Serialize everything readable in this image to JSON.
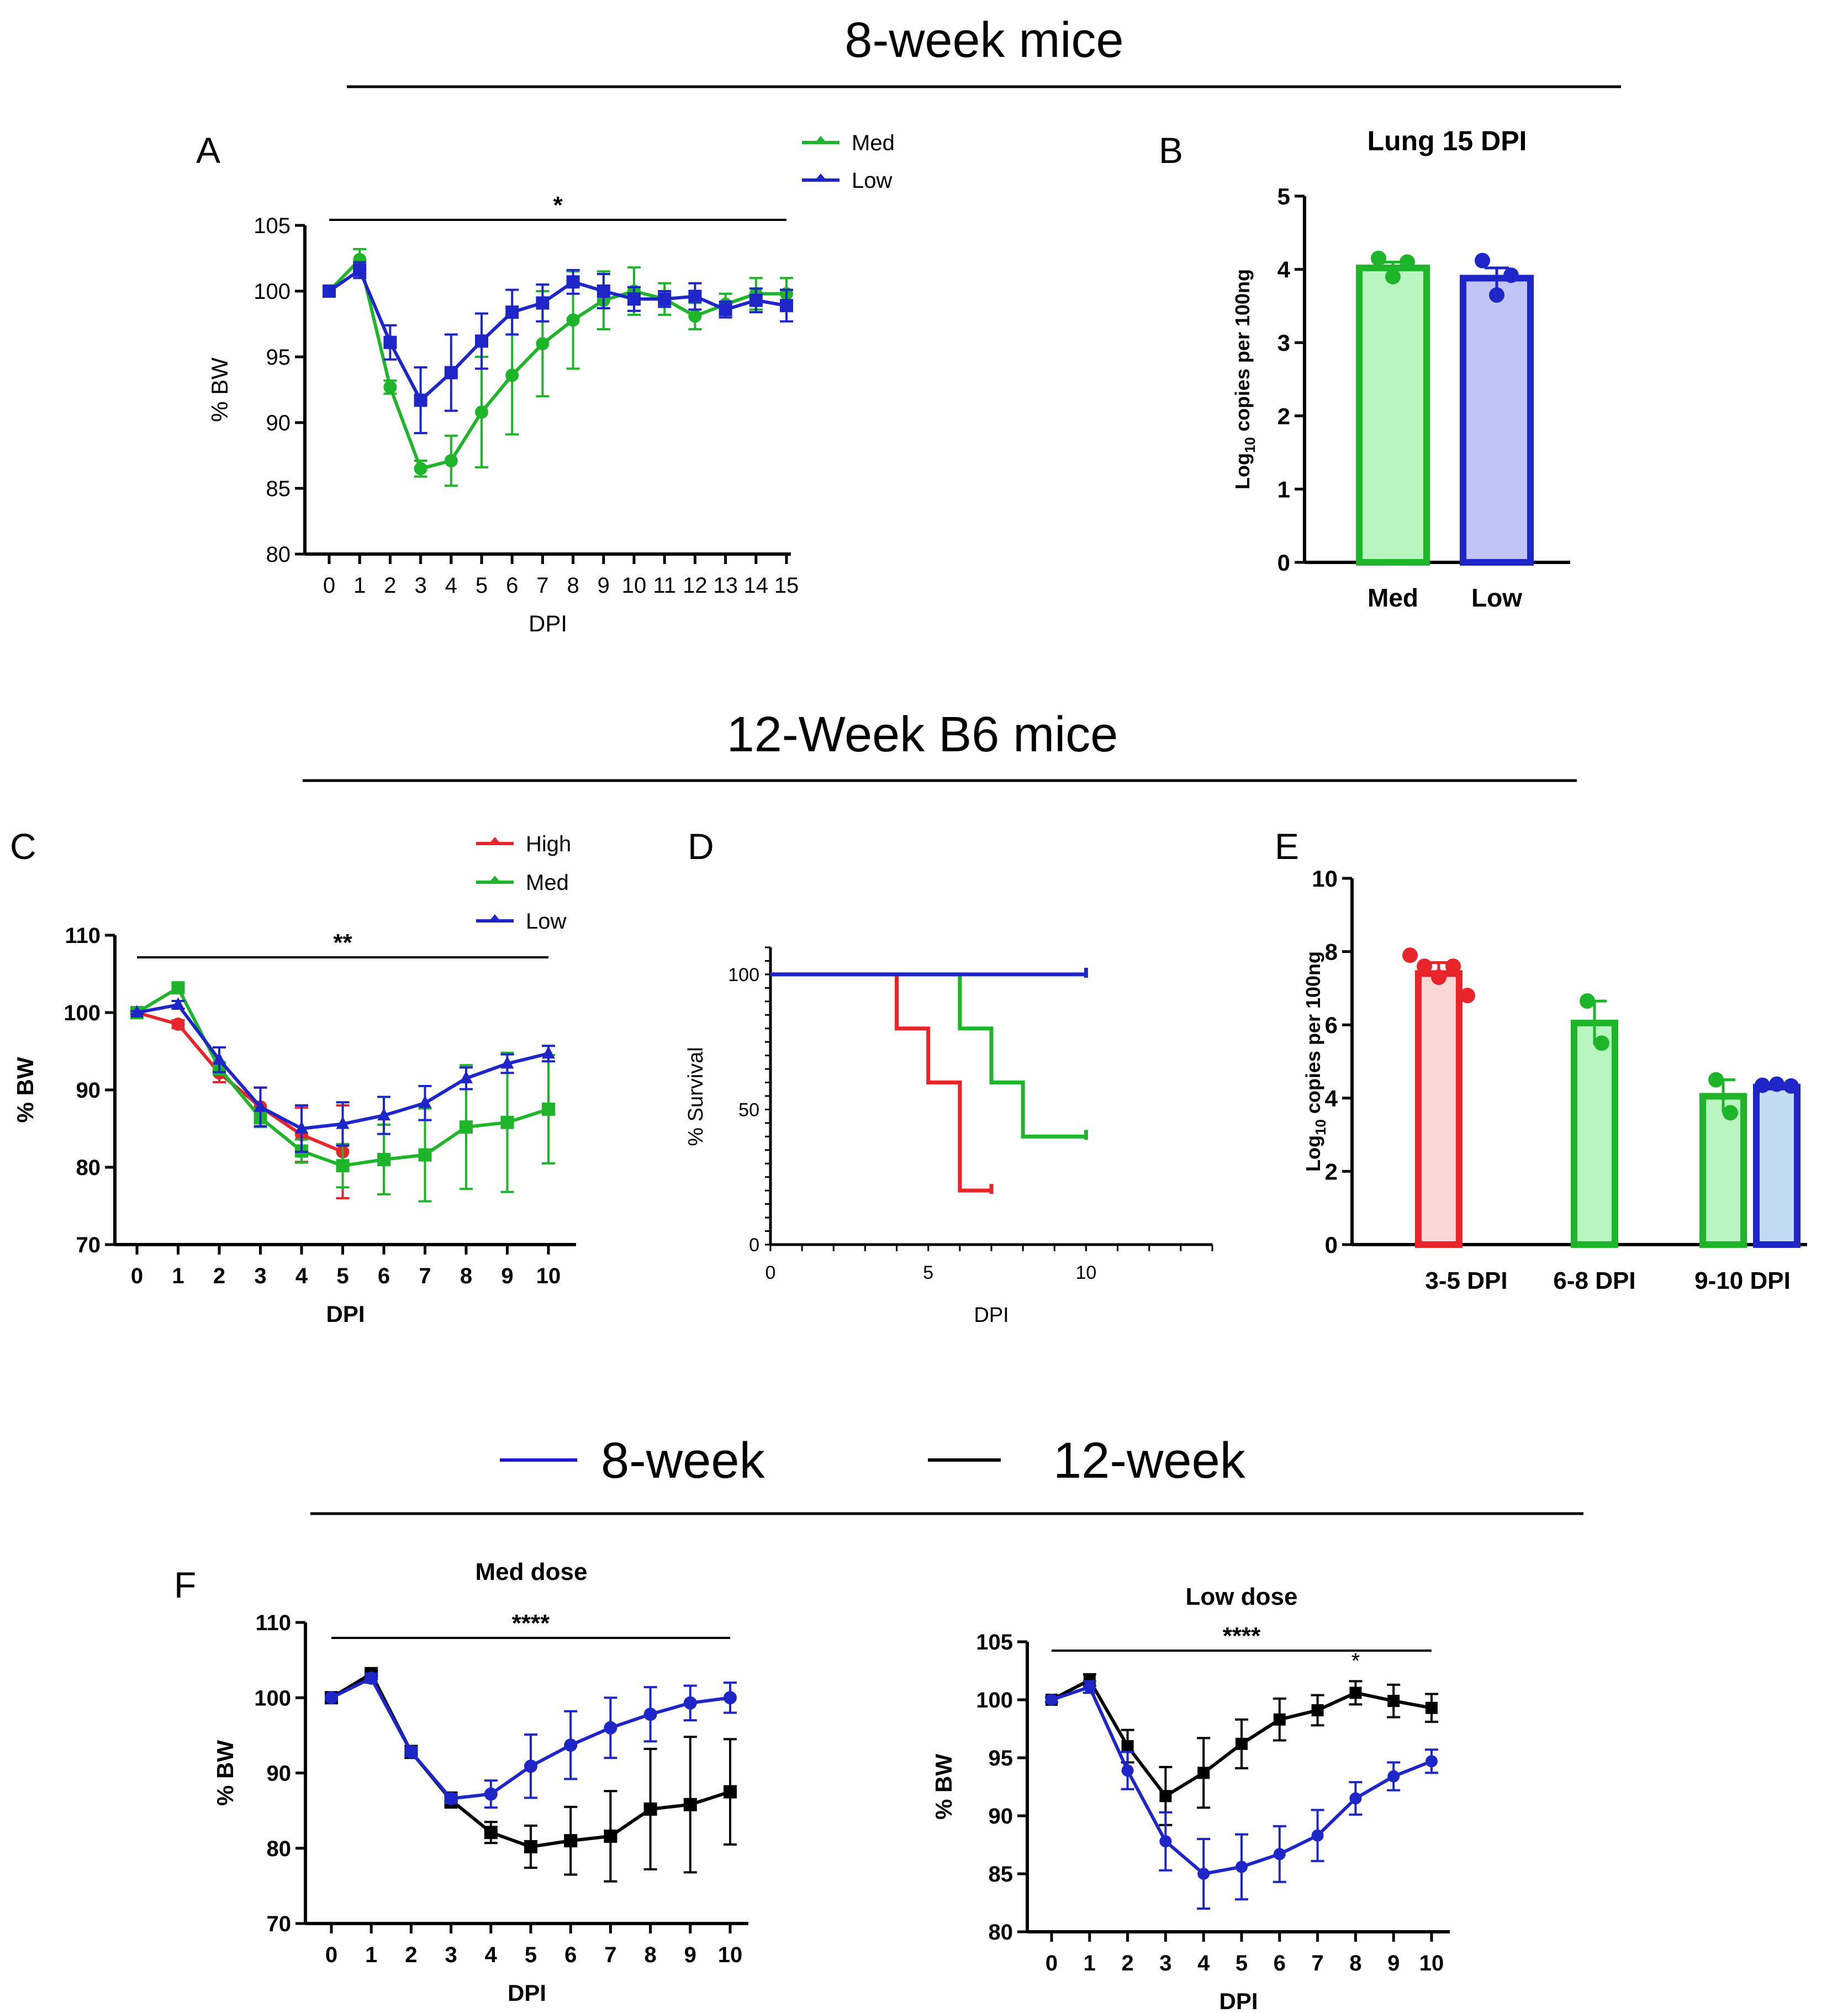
{
  "headers": {
    "top": "8-week mice",
    "middle": "12-Week B6 mice",
    "bottom_legend": [
      {
        "label": "8-week",
        "color": "#1a1ad6"
      },
      {
        "label": "12-week",
        "color": "#000000"
      }
    ]
  },
  "panel_labels": {
    "A": "A",
    "B": "B",
    "C": "C",
    "D": "D",
    "E": "E",
    "F": "F"
  },
  "colors": {
    "high": "#e8252b",
    "med": "#1fb52a",
    "low": "#1f26c7",
    "black": "#000000",
    "med_fill": "#b8f5c0",
    "low_fill": "#c2c4f7",
    "high_fill": "#fbd7d8",
    "low_fill_e": "#c4dbf5"
  },
  "chart_data": [
    {
      "id": "A",
      "type": "line",
      "xlabel": "DPI",
      "ylabel": "% BW",
      "ylim": [
        80,
        105
      ],
      "yticks": [
        "80",
        "85",
        "90",
        "95",
        "100",
        "105"
      ],
      "x": [
        0,
        1,
        2,
        3,
        4,
        5,
        6,
        7,
        8,
        9,
        10,
        11,
        12,
        13,
        14,
        15
      ],
      "x_tick_labels": [
        "0",
        "1",
        "2",
        "3",
        "4",
        "5",
        "6",
        "7",
        "8",
        "9",
        "10",
        "11",
        "12",
        "13",
        "14",
        "15"
      ],
      "significance": "*",
      "legend": [
        "Med",
        "Low"
      ],
      "series": [
        {
          "name": "Med",
          "color": "#1fb52a",
          "marker": "circle",
          "values": [
            100,
            102.4,
            92.7,
            86.5,
            87.1,
            90.8,
            93.6,
            96.0,
            97.8,
            99.3,
            100.0,
            99.4,
            98.1,
            99.0,
            99.8,
            99.8
          ],
          "err": [
            0.3,
            0.8,
            0.5,
            0.6,
            1.9,
            4.2,
            4.5,
            4.0,
            3.7,
            2.2,
            1.8,
            1.2,
            1.0,
            0.8,
            1.2,
            1.2
          ]
        },
        {
          "name": "Low",
          "color": "#1f26c7",
          "marker": "square",
          "values": [
            100,
            101.6,
            96.1,
            91.7,
            93.8,
            96.2,
            98.4,
            99.1,
            100.7,
            100.0,
            99.4,
            99.4,
            99.6,
            98.6,
            99.3,
            98.9
          ],
          "err": [
            0.2,
            0.6,
            1.3,
            2.5,
            2.9,
            2.1,
            1.7,
            1.4,
            0.9,
            1.3,
            0.9,
            0.6,
            1.0,
            0.6,
            0.9,
            1.2
          ]
        }
      ]
    },
    {
      "id": "B",
      "type": "bar",
      "title": "Lung 15 DPI",
      "ylabel_parts": [
        "Log",
        "10",
        " copies per 100ng"
      ],
      "ylim": [
        0,
        5
      ],
      "yticks": [
        "0",
        "1",
        "2",
        "3",
        "4",
        "5"
      ],
      "categories": [
        "Med",
        "Low"
      ],
      "values": [
        4.02,
        3.88
      ],
      "err": [
        0.08,
        0.14
      ],
      "points": [
        [
          4.15,
          3.9,
          4.1
        ],
        [
          4.12,
          3.65,
          3.92
        ]
      ],
      "colors": [
        "#1fb52a",
        "#1f26c7"
      ],
      "fills": [
        "#b8f5c0",
        "#c2c4f7"
      ]
    },
    {
      "id": "C",
      "type": "line",
      "xlabel": "DPI",
      "ylabel": "% BW",
      "ylim": [
        70,
        110
      ],
      "yticks": [
        "70",
        "80",
        "90",
        "100",
        "110"
      ],
      "x": [
        0,
        1,
        2,
        3,
        4,
        5,
        6,
        7,
        8,
        9,
        10
      ],
      "x_tick_labels": [
        "0",
        "1",
        "2",
        "3",
        "4",
        "5",
        "6",
        "7",
        "8",
        "9",
        "10"
      ],
      "significance": "**",
      "legend": [
        "High",
        "Med",
        "Low"
      ],
      "series": [
        {
          "name": "High",
          "color": "#e8252b",
          "marker": "circle",
          "x": [
            0,
            1,
            2,
            3,
            4,
            5
          ],
          "values": [
            100,
            98.5,
            92.2,
            87.8,
            84.2,
            82.0
          ],
          "err": [
            0.3,
            0.5,
            1.2,
            2.5,
            3.5,
            6.0
          ]
        },
        {
          "name": "Med",
          "color": "#1fb52a",
          "marker": "square",
          "x": [
            0,
            1,
            2,
            3,
            4,
            5,
            6,
            7,
            8,
            9,
            10
          ],
          "values": [
            100,
            103.2,
            92.8,
            86.4,
            82.1,
            80.2,
            81.0,
            81.6,
            85.2,
            85.8,
            87.5
          ],
          "err": [
            0.3,
            0.4,
            0.8,
            1.2,
            1.5,
            2.8,
            4.5,
            6.0,
            8.0,
            9.0,
            7.0
          ]
        },
        {
          "name": "Low",
          "color": "#1f26c7",
          "marker": "triangle",
          "x": [
            0,
            1,
            2,
            3,
            4,
            5,
            6,
            7,
            8,
            9,
            10
          ],
          "values": [
            100,
            101.0,
            93.9,
            87.8,
            85.0,
            85.6,
            86.7,
            88.3,
            91.5,
            93.4,
            94.7
          ],
          "err": [
            0.2,
            0.5,
            1.6,
            2.5,
            3.0,
            2.8,
            2.4,
            2.2,
            1.4,
            1.2,
            1.0
          ]
        }
      ]
    },
    {
      "id": "D",
      "type": "line",
      "subtype": "survival",
      "xlabel": "DPI",
      "ylabel": "% Survival",
      "xlim": [
        0,
        14
      ],
      "ylim": [
        0,
        110
      ],
      "xticks": [
        "0",
        "5",
        "10"
      ],
      "yticks": [
        "0",
        "50",
        "100"
      ],
      "series": [
        {
          "name": "High",
          "color": "#e8252b",
          "steps": [
            [
              0,
              100
            ],
            [
              4,
              100
            ],
            [
              4,
              80
            ],
            [
              5,
              80
            ],
            [
              5,
              60
            ],
            [
              6,
              60
            ],
            [
              6,
              20
            ],
            [
              7,
              20
            ]
          ]
        },
        {
          "name": "Med",
          "color": "#1fb52a",
          "steps": [
            [
              0,
              100
            ],
            [
              6,
              100
            ],
            [
              6,
              80
            ],
            [
              7,
              80
            ],
            [
              7,
              60
            ],
            [
              8,
              60
            ],
            [
              8,
              40
            ],
            [
              10,
              40
            ]
          ]
        },
        {
          "name": "Low",
          "color": "#1f26c7",
          "steps": [
            [
              0,
              100
            ],
            [
              10,
              100
            ]
          ]
        }
      ]
    },
    {
      "id": "E",
      "type": "bar",
      "ylabel_parts": [
        "Log",
        "10",
        " copies per 100ng"
      ],
      "ylim": [
        0,
        10
      ],
      "yticks": [
        "0",
        "2",
        "4",
        "6",
        "8",
        "10"
      ],
      "groups": [
        "3-5 DPI",
        "6-8 DPI",
        "9-10 DPI"
      ],
      "bars": [
        {
          "group": 0,
          "series": "High",
          "value": 7.4,
          "err": 0.3,
          "color": "#e8252b",
          "fill": "#fbd7d8",
          "points": [
            7.9,
            7.6,
            7.3,
            7.6,
            6.8
          ]
        },
        {
          "group": 1,
          "series": "Med",
          "value": 6.05,
          "err": 0.6,
          "color": "#1fb52a",
          "fill": "#b8f5c0",
          "points": [
            6.65,
            5.5
          ]
        },
        {
          "group": 2,
          "series": "Med",
          "value": 4.05,
          "err": 0.45,
          "color": "#1fb52a",
          "fill": "#b8f5c0",
          "points": [
            4.5,
            3.6
          ]
        },
        {
          "group": 2,
          "series": "Low",
          "value": 4.3,
          "err": 0.05,
          "color": "#1f26c7",
          "fill": "#c4dbf5",
          "points": [
            4.35,
            4.38,
            4.33
          ]
        }
      ]
    },
    {
      "id": "F1",
      "type": "line",
      "title": "Med dose",
      "xlabel": "DPI",
      "ylabel": "% BW",
      "ylim": [
        70,
        110
      ],
      "yticks": [
        "70",
        "80",
        "90",
        "100",
        "110"
      ],
      "x": [
        0,
        1,
        2,
        3,
        4,
        5,
        6,
        7,
        8,
        9,
        10
      ],
      "x_tick_labels": [
        "0",
        "1",
        "2",
        "3",
        "4",
        "5",
        "6",
        "7",
        "8",
        "9",
        "10"
      ],
      "significance": "****",
      "series": [
        {
          "name": "12-week",
          "color": "#000000",
          "marker": "square",
          "values": [
            100,
            103.2,
            92.8,
            86.4,
            82.1,
            80.2,
            81.0,
            81.6,
            85.2,
            85.8,
            87.5
          ],
          "err": [
            0.3,
            0.4,
            0.8,
            1.0,
            1.4,
            2.8,
            4.5,
            6.0,
            8.0,
            9.0,
            7.0
          ]
        },
        {
          "name": "8-week",
          "color": "#1f26c7",
          "marker": "circle",
          "values": [
            100,
            102.6,
            92.8,
            86.6,
            87.2,
            90.9,
            93.7,
            96.0,
            97.8,
            99.3,
            100.0
          ],
          "err": [
            0.2,
            0.6,
            0.6,
            0.6,
            1.8,
            4.2,
            4.5,
            4.0,
            3.6,
            2.3,
            2.0
          ]
        }
      ]
    },
    {
      "id": "F2",
      "type": "line",
      "title": "Low dose",
      "xlabel": "DPI",
      "ylabel": "% BW",
      "ylim": [
        80,
        105
      ],
      "yticks": [
        "80",
        "85",
        "90",
        "95",
        "100",
        "105"
      ],
      "x": [
        0,
        1,
        2,
        3,
        4,
        5,
        6,
        7,
        8,
        9,
        10
      ],
      "x_tick_labels": [
        "0",
        "1",
        "2",
        "3",
        "4",
        "5",
        "6",
        "7",
        "8",
        "9",
        "10"
      ],
      "significance": "****",
      "annotations": [
        {
          "x": 8,
          "text": "*"
        }
      ],
      "series": [
        {
          "name": "12-week",
          "color": "#000000",
          "marker": "square",
          "values": [
            100,
            101.7,
            96.0,
            91.7,
            93.7,
            96.2,
            98.3,
            99.1,
            100.6,
            99.9,
            99.3
          ],
          "err": [
            0.2,
            0.5,
            1.4,
            2.5,
            3.0,
            2.1,
            1.8,
            1.3,
            1.0,
            1.4,
            1.2
          ]
        },
        {
          "name": "8-week",
          "color": "#1f26c7",
          "marker": "circle",
          "values": [
            100,
            101.1,
            93.9,
            87.8,
            85.0,
            85.6,
            86.7,
            88.3,
            91.5,
            93.4,
            94.7
          ],
          "err": [
            0.2,
            0.5,
            1.6,
            2.5,
            3.0,
            2.8,
            2.4,
            2.2,
            1.4,
            1.2,
            1.0
          ]
        }
      ]
    }
  ]
}
